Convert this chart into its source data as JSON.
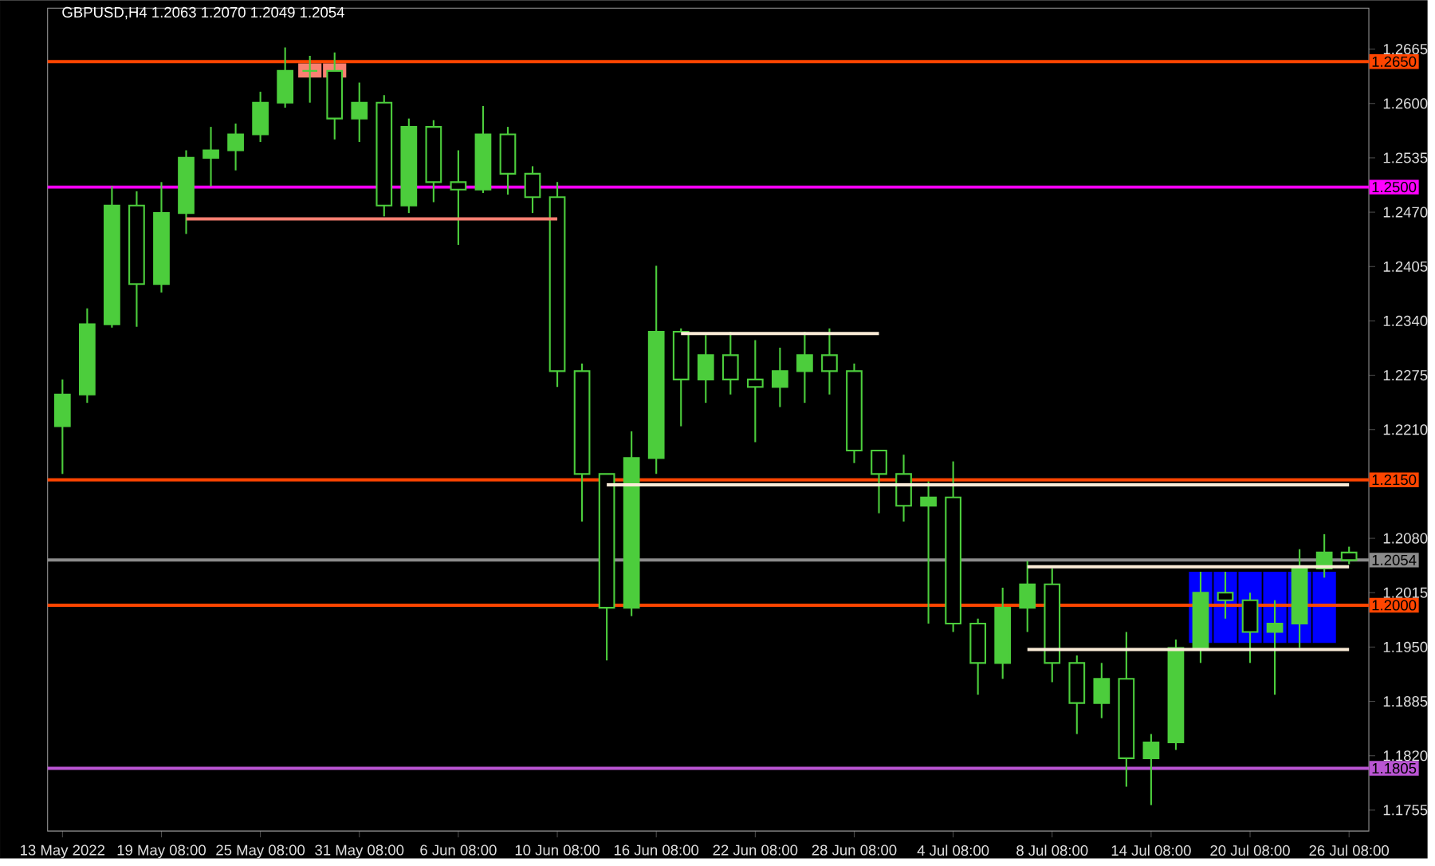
{
  "chart_data": {
    "type": "candlestick",
    "title": "GBPUSD,H4  1.2063 1.2070 1.2049 1.2054",
    "color": "#4ccd3c",
    "categories": [
      "13 May 2022",
      null,
      null,
      null,
      "19 May 08:00",
      null,
      null,
      null,
      "25 May 08:00",
      null,
      null,
      null,
      "31 May 08:00",
      null,
      null,
      null,
      "6 Jun 08:00",
      null,
      null,
      null,
      "10 Jun 08:00",
      null,
      null,
      null,
      "16 Jun 08:00",
      null,
      null,
      null,
      "22 Jun 08:00",
      null,
      null,
      null,
      "28 Jun 08:00",
      null,
      null,
      null,
      "4 Jul 08:00",
      null,
      null,
      null,
      "8 Jul 08:00",
      null,
      null,
      null,
      "14 Jul 08:00",
      null,
      null,
      null,
      "20 Jul 08:00",
      null,
      null,
      null,
      "26 Jul 08:00"
    ],
    "ohlc": [
      [
        1.2214,
        1.227,
        1.2157,
        1.2252
      ],
      [
        1.2252,
        1.2355,
        1.2242,
        1.2336
      ],
      [
        1.2336,
        1.2501,
        1.2332,
        1.2478
      ],
      [
        1.2478,
        1.2495,
        1.2333,
        1.2384
      ],
      [
        1.2384,
        1.2506,
        1.2374,
        1.2469
      ],
      [
        1.2469,
        1.2544,
        1.2444,
        1.2535
      ],
      [
        1.2535,
        1.2572,
        1.2501,
        1.2544
      ],
      [
        1.2544,
        1.2576,
        1.252,
        1.2563
      ],
      [
        1.2563,
        1.2614,
        1.2554,
        1.2601
      ],
      [
        1.2601,
        1.2667,
        1.2595,
        1.2639
      ],
      [
        1.2639,
        1.2657,
        1.2601,
        1.2639
      ],
      [
        1.2639,
        1.2661,
        1.2557,
        1.2582
      ],
      [
        1.2582,
        1.2625,
        1.2554,
        1.2601
      ],
      [
        1.2601,
        1.261,
        1.2465,
        1.2478
      ],
      [
        1.2478,
        1.2582,
        1.2469,
        1.2572
      ],
      [
        1.2572,
        1.258,
        1.2482,
        1.2506
      ],
      [
        1.2506,
        1.2544,
        1.2431,
        1.2497
      ],
      [
        1.2497,
        1.2597,
        1.2493,
        1.2563
      ],
      [
        1.2563,
        1.2572,
        1.2491,
        1.2516
      ],
      [
        1.2516,
        1.2525,
        1.2469,
        1.2488
      ],
      [
        1.2488,
        1.2506,
        1.2261,
        1.228
      ],
      [
        1.228,
        1.2289,
        1.21,
        1.2157
      ],
      [
        1.2157,
        1.2157,
        1.1934,
        1.1997
      ],
      [
        1.1997,
        1.2208,
        1.1987,
        1.2176
      ],
      [
        1.2176,
        1.2406,
        1.2157,
        1.2327
      ],
      [
        1.2327,
        1.2331,
        1.2214,
        1.227
      ],
      [
        1.227,
        1.2323,
        1.2242,
        1.2299
      ],
      [
        1.2299,
        1.2327,
        1.2252,
        1.227
      ],
      [
        1.227,
        1.2317,
        1.2195,
        1.2261
      ],
      [
        1.2261,
        1.2308,
        1.2237,
        1.228
      ],
      [
        1.228,
        1.2327,
        1.2242,
        1.2299
      ],
      [
        1.2299,
        1.2331,
        1.2252,
        1.228
      ],
      [
        1.228,
        1.2289,
        1.217,
        1.2185
      ],
      [
        1.2185,
        1.2185,
        1.211,
        1.2157
      ],
      [
        1.2157,
        1.218,
        1.21,
        1.2119
      ],
      [
        1.2119,
        1.2148,
        1.1978,
        1.2129
      ],
      [
        1.2129,
        1.2172,
        1.1968,
        1.1978
      ],
      [
        1.1978,
        1.1984,
        1.1893,
        1.1931
      ],
      [
        1.1931,
        1.2021,
        1.1912,
        1.1997
      ],
      [
        1.1997,
        1.2053,
        1.1968,
        1.2025
      ],
      [
        1.2025,
        1.2044,
        1.1908,
        1.1931
      ],
      [
        1.1931,
        1.194,
        1.1846,
        1.1883
      ],
      [
        1.1883,
        1.1931,
        1.1865,
        1.1912
      ],
      [
        1.1912,
        1.1968,
        1.1783,
        1.1817
      ],
      [
        1.1817,
        1.1846,
        1.1761,
        1.1836
      ],
      [
        1.1836,
        1.1959,
        1.1827,
        1.1949
      ],
      [
        1.1949,
        1.204,
        1.1931,
        1.2015
      ],
      [
        1.2015,
        1.204,
        1.1984,
        1.2006
      ],
      [
        1.2006,
        1.2015,
        1.1931,
        1.1968
      ],
      [
        1.1968,
        1.2006,
        1.1893,
        1.1978
      ],
      [
        1.1978,
        1.2067,
        1.1949,
        1.2044
      ],
      [
        1.2044,
        1.2085,
        1.2033,
        1.2063
      ],
      [
        1.2063,
        1.207,
        1.2049,
        1.2054
      ]
    ],
    "series": [
      {
        "type": "bar",
        "values": [
          null,
          null,
          null,
          null,
          null,
          null,
          null,
          null,
          null,
          null,
          null,
          null,
          null,
          null,
          null,
          null,
          null,
          null,
          null,
          null,
          null,
          null,
          null,
          null,
          null,
          null,
          null,
          null,
          null,
          null,
          null,
          null,
          null,
          null,
          null,
          null,
          null,
          null,
          null,
          null,
          null,
          null,
          null,
          null,
          null,
          null,
          0.0085,
          0.0085,
          0.0085,
          0.0085,
          0.0085,
          0.0085,
          null
        ],
        "base": [
          null,
          null,
          null,
          null,
          null,
          null,
          null,
          null,
          null,
          null,
          null,
          null,
          null,
          null,
          null,
          null,
          null,
          null,
          null,
          null,
          null,
          null,
          null,
          null,
          null,
          null,
          null,
          null,
          null,
          null,
          null,
          null,
          null,
          null,
          null,
          null,
          null,
          null,
          null,
          null,
          null,
          null,
          null,
          null,
          null,
          null,
          1.1955,
          1.1955,
          1.1955,
          1.1955,
          1.1955,
          1.1955,
          null
        ],
        "color": "#0000ff"
      },
      {
        "type": "bar",
        "values": [
          null,
          null,
          null,
          null,
          null,
          null,
          null,
          null,
          null,
          null,
          0.0017,
          0.0017,
          null,
          null,
          null,
          null,
          null,
          null,
          null,
          null,
          null,
          null,
          null,
          null,
          null,
          null,
          null,
          null,
          null,
          null,
          null,
          null,
          null,
          null,
          null,
          null,
          null,
          null,
          null,
          null,
          null,
          null,
          null,
          null,
          null,
          null,
          null,
          null,
          null,
          null,
          null,
          null,
          null
        ],
        "base": [
          null,
          null,
          null,
          null,
          null,
          null,
          null,
          null,
          null,
          null,
          1.2631,
          1.2631,
          null,
          null,
          null,
          null,
          null,
          null,
          null,
          null,
          null,
          null,
          null,
          null,
          null,
          null,
          null,
          null,
          null,
          null,
          null,
          null,
          null,
          null,
          null,
          null,
          null,
          null,
          null,
          null,
          null,
          null,
          null,
          null,
          null,
          null,
          null,
          null,
          null,
          null,
          null,
          null,
          null
        ],
        "color": "#fa8072"
      },
      {
        "type": "line",
        "values": [
          null,
          null,
          null,
          null,
          null,
          1.2462,
          1.2462,
          1.2462,
          1.2462,
          1.2462,
          1.2462,
          1.2462,
          1.2462,
          1.2462,
          1.2462,
          1.2462,
          1.2462,
          1.2462,
          1.2462,
          1.2462,
          1.2462,
          null,
          null,
          null,
          null,
          null,
          null,
          null,
          null,
          null,
          null,
          null,
          null,
          null,
          null,
          null,
          null,
          null,
          null,
          null,
          null,
          null,
          null,
          null,
          null,
          null,
          null,
          null,
          null,
          null,
          null,
          null,
          null
        ],
        "color": "#fa8072"
      },
      {
        "type": "line",
        "values": [
          null,
          null,
          null,
          null,
          null,
          null,
          null,
          null,
          null,
          null,
          null,
          null,
          null,
          null,
          null,
          null,
          null,
          null,
          null,
          null,
          null,
          null,
          null,
          null,
          null,
          1.2325,
          1.2325,
          1.2325,
          1.2325,
          1.2325,
          1.2325,
          1.2325,
          1.2325,
          1.2325,
          null,
          null,
          null,
          null,
          null,
          null,
          null,
          null,
          null,
          null,
          null,
          null,
          null,
          null,
          null,
          null,
          null,
          null,
          null
        ],
        "color": "#faebd7"
      },
      {
        "type": "line",
        "values": [
          null,
          null,
          null,
          null,
          null,
          null,
          null,
          null,
          null,
          null,
          null,
          null,
          null,
          null,
          null,
          null,
          null,
          null,
          null,
          null,
          null,
          null,
          1.2144,
          1.2144,
          1.2144,
          1.2144,
          1.2144,
          1.2144,
          1.2144,
          1.2144,
          1.2144,
          1.2144,
          1.2144,
          1.2144,
          1.2144,
          1.2144,
          1.2144,
          1.2144,
          1.2144,
          1.2144,
          1.2144,
          1.2144,
          1.2144,
          1.2144,
          1.2144,
          1.2144,
          1.2144,
          1.2144,
          1.2144,
          1.2144,
          1.2144,
          1.2144,
          1.2144
        ],
        "color": "#faebd7"
      },
      {
        "type": "line",
        "values": [
          null,
          null,
          null,
          null,
          null,
          null,
          null,
          null,
          null,
          null,
          null,
          null,
          null,
          null,
          null,
          null,
          null,
          null,
          null,
          null,
          null,
          null,
          null,
          null,
          null,
          null,
          null,
          null,
          null,
          null,
          null,
          null,
          null,
          null,
          null,
          null,
          null,
          null,
          null,
          1.2046,
          1.2046,
          1.2046,
          1.2046,
          1.2046,
          1.2046,
          1.2046,
          1.2046,
          1.2046,
          1.2046,
          1.2046,
          1.2046,
          1.2046,
          1.2046
        ],
        "color": "#faebd7"
      },
      {
        "type": "line",
        "values": [
          null,
          null,
          null,
          null,
          null,
          null,
          null,
          null,
          null,
          null,
          null,
          null,
          null,
          null,
          null,
          null,
          null,
          null,
          null,
          null,
          null,
          null,
          null,
          null,
          null,
          null,
          null,
          null,
          null,
          null,
          null,
          null,
          null,
          null,
          null,
          null,
          null,
          null,
          null,
          1.1947,
          1.1947,
          1.1947,
          1.1947,
          1.1947,
          1.1947,
          1.1947,
          1.1947,
          1.1947,
          1.1947,
          1.1947,
          1.1947,
          1.1947,
          1.1947
        ],
        "color": "#faebd7"
      }
    ],
    "ref_lines": [
      {
        "axis": "y",
        "value": 1.265,
        "label": "1.2650",
        "color": "#ff4500"
      },
      {
        "axis": "y",
        "value": 1.25,
        "label": "1.2500",
        "color": "#ff00ff"
      },
      {
        "axis": "y",
        "value": 1.215,
        "label": "1.2150",
        "color": "#ff4500"
      },
      {
        "axis": "y",
        "value": 1.2054,
        "label": "1.2054",
        "color": "#8c8c8c"
      },
      {
        "axis": "y",
        "value": 1.2,
        "label": "1.2000",
        "color": "#ff4500"
      },
      {
        "axis": "y",
        "value": 1.1805,
        "label": "1.1805",
        "color": "#ba55d3"
      }
    ],
    "ylim": [
      1.173,
      1.2714
    ],
    "yticks": [
      1.1755,
      {
        "value": 1.182,
        "label": "1.1820"
      },
      1.1885,
      {
        "value": 1.195,
        "label": "1.1950"
      },
      1.2015,
      {
        "value": 1.208,
        "label": "1.2080"
      },
      {
        "value": 1.2145,
        "label": null
      },
      {
        "value": 1.221,
        "label": "1.2210"
      },
      1.2275,
      {
        "value": 1.234,
        "label": "1.2340"
      },
      1.2405,
      {
        "value": 1.247,
        "label": "1.2470"
      },
      1.2535,
      {
        "value": 1.26,
        "label": "1.2600"
      },
      1.2665
    ]
  }
}
